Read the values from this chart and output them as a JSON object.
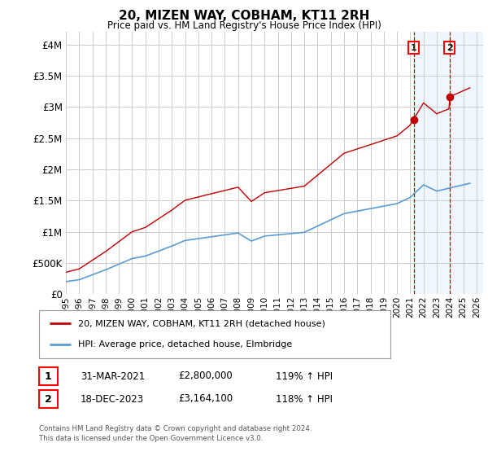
{
  "title": "20, MIZEN WAY, COBHAM, KT11 2RH",
  "subtitle": "Price paid vs. HM Land Registry's House Price Index (HPI)",
  "ylabel_ticks": [
    "£0",
    "£500K",
    "£1M",
    "£1.5M",
    "£2M",
    "£2.5M",
    "£3M",
    "£3.5M",
    "£4M"
  ],
  "ytick_values": [
    0,
    500000,
    1000000,
    1500000,
    2000000,
    2500000,
    3000000,
    3500000,
    4000000
  ],
  "ylim": [
    0,
    4200000
  ],
  "xlim_start": 1995.0,
  "xlim_end": 2026.5,
  "hpi_color": "#5b9bd5",
  "price_color": "#c00000",
  "vline1_x": 2021.25,
  "vline2_x": 2023.97,
  "marker1_x": 2021.25,
  "marker1_y": 2800000,
  "marker2_x": 2023.97,
  "marker2_y": 3164100,
  "legend_label_price": "20, MIZEN WAY, COBHAM, KT11 2RH (detached house)",
  "legend_label_hpi": "HPI: Average price, detached house, Elmbridge",
  "table_row1": [
    "1",
    "31-MAR-2021",
    "£2,800,000",
    "119% ↑ HPI"
  ],
  "table_row2": [
    "2",
    "18-DEC-2023",
    "£3,164,100",
    "118% ↑ HPI"
  ],
  "footer": "Contains HM Land Registry data © Crown copyright and database right 2024.\nThis data is licensed under the Open Government Licence v3.0.",
  "background_color": "#ffffff",
  "grid_color": "#cccccc",
  "shade_color": "#dbeeff"
}
